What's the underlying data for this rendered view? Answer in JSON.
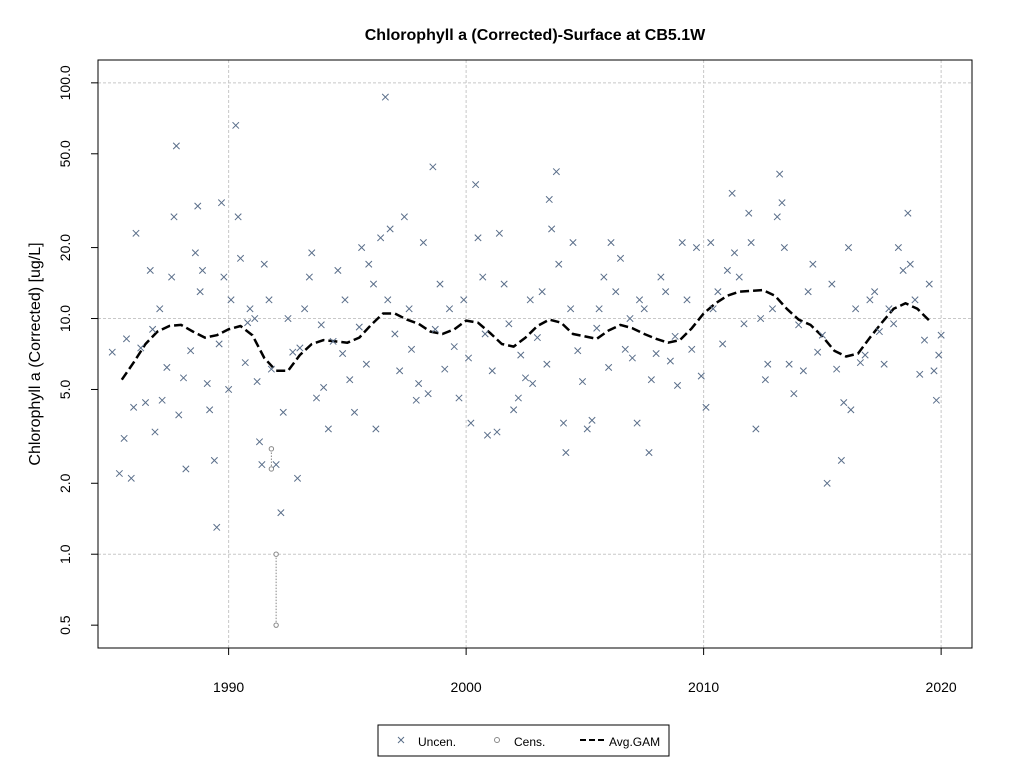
{
  "chart_data": {
    "type": "scatter",
    "title": "Chlorophyll a (Corrected)-Surface at CB5.1W",
    "xlabel": "",
    "ylabel": "Chlorophyll a (Corrected) [ug/L]",
    "x_scale": "linear",
    "y_scale": "log",
    "xlim": [
      1984.5,
      2021.3
    ],
    "ylim": [
      0.4,
      125
    ],
    "x_ticks": [
      1990,
      2000,
      2010,
      2020
    ],
    "x_tick_labels": [
      "1990",
      "2000",
      "2010",
      "2020"
    ],
    "y_ticks": [
      0.5,
      1,
      2,
      5,
      10,
      20,
      50,
      100
    ],
    "y_tick_labels": [
      "0.5",
      "1.0",
      "2.0",
      "5.0",
      "10.0",
      "20.0",
      "50.0",
      "100.0"
    ],
    "grid": true,
    "legend": {
      "position": "bottom",
      "entries": [
        {
          "label": "Uncen.",
          "symbol": "x",
          "color": "#5a6e8a"
        },
        {
          "label": "Cens.",
          "symbol": "circle",
          "color": "#888888"
        },
        {
          "label": "Avg.GAM",
          "symbol": "dashed-line",
          "color": "#000000"
        }
      ]
    },
    "series": [
      {
        "name": "Uncen.",
        "marker": "x",
        "color": "#5a6e8a",
        "points": [
          [
            1985.1,
            7.2
          ],
          [
            1985.4,
            2.2
          ],
          [
            1985.6,
            3.1
          ],
          [
            1985.7,
            8.2
          ],
          [
            1985.9,
            2.1
          ],
          [
            1986.0,
            4.2
          ],
          [
            1986.1,
            23
          ],
          [
            1986.3,
            7.5
          ],
          [
            1986.5,
            4.4
          ],
          [
            1986.7,
            16
          ],
          [
            1986.8,
            9
          ],
          [
            1986.9,
            3.3
          ],
          [
            1987.1,
            11
          ],
          [
            1987.2,
            4.5
          ],
          [
            1987.4,
            6.2
          ],
          [
            1987.6,
            15
          ],
          [
            1987.7,
            27
          ],
          [
            1987.8,
            54
          ],
          [
            1987.9,
            3.9
          ],
          [
            1988.1,
            5.6
          ],
          [
            1988.2,
            2.3
          ],
          [
            1988.4,
            7.3
          ],
          [
            1988.6,
            19
          ],
          [
            1988.7,
            30
          ],
          [
            1988.8,
            13
          ],
          [
            1988.9,
            16
          ],
          [
            1989.1,
            5.3
          ],
          [
            1989.2,
            4.1
          ],
          [
            1989.4,
            2.5
          ],
          [
            1989.5,
            1.3
          ],
          [
            1989.6,
            7.8
          ],
          [
            1989.7,
            31
          ],
          [
            1989.8,
            15
          ],
          [
            1990.0,
            5.0
          ],
          [
            1990.1,
            12
          ],
          [
            1990.3,
            66
          ],
          [
            1990.4,
            27
          ],
          [
            1990.5,
            18
          ],
          [
            1990.7,
            6.5
          ],
          [
            1990.8,
            9.6
          ],
          [
            1990.9,
            11
          ],
          [
            1991.1,
            10
          ],
          [
            1991.2,
            5.4
          ],
          [
            1991.3,
            3.0
          ],
          [
            1991.4,
            2.4
          ],
          [
            1991.5,
            17
          ],
          [
            1991.7,
            12
          ],
          [
            1991.8,
            6.1
          ],
          [
            1992.0,
            2.4
          ],
          [
            1992.2,
            1.5
          ],
          [
            1992.3,
            4.0
          ],
          [
            1992.5,
            10
          ],
          [
            1992.7,
            7.2
          ],
          [
            1992.9,
            2.1
          ],
          [
            1993.0,
            7.5
          ],
          [
            1993.2,
            11
          ],
          [
            1993.4,
            15
          ],
          [
            1993.5,
            19
          ],
          [
            1993.7,
            4.6
          ],
          [
            1993.9,
            9.4
          ],
          [
            1994.0,
            5.1
          ],
          [
            1994.2,
            3.4
          ],
          [
            1994.4,
            8.0
          ],
          [
            1994.6,
            16
          ],
          [
            1994.8,
            7.1
          ],
          [
            1994.9,
            12
          ],
          [
            1995.1,
            5.5
          ],
          [
            1995.3,
            4.0
          ],
          [
            1995.5,
            9.2
          ],
          [
            1995.6,
            20
          ],
          [
            1995.8,
            6.4
          ],
          [
            1995.9,
            17
          ],
          [
            1996.1,
            14
          ],
          [
            1996.2,
            3.4
          ],
          [
            1996.4,
            22
          ],
          [
            1996.6,
            87
          ],
          [
            1996.7,
            12
          ],
          [
            1996.8,
            24
          ],
          [
            1997.0,
            8.6
          ],
          [
            1997.2,
            6.0
          ],
          [
            1997.4,
            27
          ],
          [
            1997.6,
            11
          ],
          [
            1997.7,
            7.4
          ],
          [
            1997.9,
            4.5
          ],
          [
            1998.0,
            5.3
          ],
          [
            1998.2,
            21
          ],
          [
            1998.4,
            4.8
          ],
          [
            1998.6,
            44
          ],
          [
            1998.7,
            9.0
          ],
          [
            1998.9,
            14
          ],
          [
            1999.1,
            6.1
          ],
          [
            1999.3,
            11
          ],
          [
            1999.5,
            7.6
          ],
          [
            1999.7,
            4.6
          ],
          [
            1999.9,
            12
          ],
          [
            2000.1,
            6.8
          ],
          [
            2000.2,
            3.6
          ],
          [
            2000.4,
            37
          ],
          [
            2000.5,
            22
          ],
          [
            2000.7,
            15
          ],
          [
            2000.8,
            8.6
          ],
          [
            2000.9,
            3.2
          ],
          [
            2001.1,
            6.0
          ],
          [
            2001.3,
            3.3
          ],
          [
            2001.4,
            23
          ],
          [
            2001.6,
            14
          ],
          [
            2001.8,
            9.5
          ],
          [
            2002.0,
            4.1
          ],
          [
            2002.2,
            4.6
          ],
          [
            2002.3,
            7.0
          ],
          [
            2002.5,
            5.6
          ],
          [
            2002.7,
            12
          ],
          [
            2002.8,
            5.3
          ],
          [
            2003.0,
            8.3
          ],
          [
            2003.2,
            13
          ],
          [
            2003.4,
            6.4
          ],
          [
            2003.5,
            32
          ],
          [
            2003.6,
            24
          ],
          [
            2003.8,
            42
          ],
          [
            2003.9,
            17
          ],
          [
            2004.1,
            3.6
          ],
          [
            2004.2,
            2.7
          ],
          [
            2004.4,
            11
          ],
          [
            2004.5,
            21
          ],
          [
            2004.7,
            7.3
          ],
          [
            2004.9,
            5.4
          ],
          [
            2005.1,
            3.4
          ],
          [
            2005.3,
            3.7
          ],
          [
            2005.5,
            9.1
          ],
          [
            2005.6,
            11
          ],
          [
            2005.8,
            15
          ],
          [
            2006.0,
            6.2
          ],
          [
            2006.1,
            21
          ],
          [
            2006.3,
            13
          ],
          [
            2006.5,
            18
          ],
          [
            2006.7,
            7.4
          ],
          [
            2006.9,
            10
          ],
          [
            2007.0,
            6.8
          ],
          [
            2007.2,
            3.6
          ],
          [
            2007.3,
            12
          ],
          [
            2007.5,
            11
          ],
          [
            2007.7,
            2.7
          ],
          [
            2007.8,
            5.5
          ],
          [
            2008.0,
            7.1
          ],
          [
            2008.2,
            15
          ],
          [
            2008.4,
            13
          ],
          [
            2008.6,
            6.6
          ],
          [
            2008.8,
            8.4
          ],
          [
            2008.9,
            5.2
          ],
          [
            2009.1,
            21
          ],
          [
            2009.3,
            12
          ],
          [
            2009.5,
            7.4
          ],
          [
            2009.7,
            20
          ],
          [
            2009.9,
            5.7
          ],
          [
            2010.1,
            4.2
          ],
          [
            2010.3,
            21
          ],
          [
            2010.4,
            11
          ],
          [
            2010.6,
            13
          ],
          [
            2010.8,
            7.8
          ],
          [
            2011.0,
            16
          ],
          [
            2011.2,
            34
          ],
          [
            2011.3,
            19
          ],
          [
            2011.5,
            15
          ],
          [
            2011.7,
            9.5
          ],
          [
            2011.9,
            28
          ],
          [
            2012.0,
            21
          ],
          [
            2012.2,
            3.4
          ],
          [
            2012.4,
            10
          ],
          [
            2012.6,
            5.5
          ],
          [
            2012.7,
            6.4
          ],
          [
            2012.9,
            11
          ],
          [
            2013.1,
            27
          ],
          [
            2013.2,
            41
          ],
          [
            2013.3,
            31
          ],
          [
            2013.4,
            20
          ],
          [
            2013.6,
            6.4
          ],
          [
            2013.8,
            4.8
          ],
          [
            2014.0,
            9.4
          ],
          [
            2014.2,
            6.0
          ],
          [
            2014.4,
            13
          ],
          [
            2014.6,
            17
          ],
          [
            2014.8,
            7.2
          ],
          [
            2015.0,
            8.5
          ],
          [
            2015.2,
            2.0
          ],
          [
            2015.4,
            14
          ],
          [
            2015.6,
            6.1
          ],
          [
            2015.8,
            2.5
          ],
          [
            2015.9,
            4.4
          ],
          [
            2016.1,
            20
          ],
          [
            2016.2,
            4.1
          ],
          [
            2016.4,
            11
          ],
          [
            2016.6,
            6.5
          ],
          [
            2016.8,
            7.0
          ],
          [
            2017.0,
            12
          ],
          [
            2017.2,
            13
          ],
          [
            2017.4,
            8.8
          ],
          [
            2017.6,
            6.4
          ],
          [
            2017.8,
            11
          ],
          [
            2018.0,
            9.5
          ],
          [
            2018.2,
            20
          ],
          [
            2018.4,
            16
          ],
          [
            2018.6,
            28
          ],
          [
            2018.7,
            17
          ],
          [
            2018.9,
            12
          ],
          [
            2019.1,
            5.8
          ],
          [
            2019.3,
            8.1
          ],
          [
            2019.5,
            14
          ],
          [
            2019.7,
            6.0
          ],
          [
            2019.8,
            4.5
          ],
          [
            2019.9,
            7.0
          ],
          [
            2020.0,
            8.5
          ]
        ]
      },
      {
        "name": "Cens.",
        "marker": "circle",
        "color": "#888888",
        "intervals": [
          [
            1991.8,
            2.3,
            2.8
          ],
          [
            1992.0,
            0.5,
            1.0
          ]
        ]
      },
      {
        "name": "Avg.GAM",
        "marker": "dashed-line",
        "color": "#000000",
        "points": [
          [
            1985.5,
            5.5
          ],
          [
            1986.0,
            6.5
          ],
          [
            1986.5,
            7.8
          ],
          [
            1987.0,
            8.8
          ],
          [
            1987.5,
            9.3
          ],
          [
            1988.0,
            9.4
          ],
          [
            1988.5,
            8.8
          ],
          [
            1989.0,
            8.3
          ],
          [
            1989.5,
            8.5
          ],
          [
            1990.0,
            9.0
          ],
          [
            1990.5,
            9.3
          ],
          [
            1991.0,
            8.5
          ],
          [
            1991.5,
            6.8
          ],
          [
            1992.0,
            6.0
          ],
          [
            1992.5,
            6.0
          ],
          [
            1993.0,
            7.0
          ],
          [
            1993.5,
            7.8
          ],
          [
            1994.0,
            8.1
          ],
          [
            1994.5,
            8.0
          ],
          [
            1995.0,
            7.9
          ],
          [
            1995.5,
            8.3
          ],
          [
            1996.0,
            9.4
          ],
          [
            1996.5,
            10.5
          ],
          [
            1997.0,
            10.5
          ],
          [
            1997.5,
            9.9
          ],
          [
            1998.0,
            9.5
          ],
          [
            1998.5,
            8.8
          ],
          [
            1999.0,
            8.6
          ],
          [
            1999.5,
            9.0
          ],
          [
            2000.0,
            9.8
          ],
          [
            2000.5,
            9.6
          ],
          [
            2001.0,
            8.7
          ],
          [
            2001.5,
            7.8
          ],
          [
            2002.0,
            7.6
          ],
          [
            2002.5,
            8.3
          ],
          [
            2003.0,
            9.3
          ],
          [
            2003.5,
            9.9
          ],
          [
            2004.0,
            9.6
          ],
          [
            2004.5,
            8.6
          ],
          [
            2005.0,
            8.4
          ],
          [
            2005.5,
            8.2
          ],
          [
            2006.0,
            8.9
          ],
          [
            2006.5,
            9.4
          ],
          [
            2007.0,
            9.1
          ],
          [
            2007.5,
            8.6
          ],
          [
            2008.0,
            8.2
          ],
          [
            2008.5,
            7.9
          ],
          [
            2009.0,
            8.1
          ],
          [
            2009.5,
            9.1
          ],
          [
            2010.0,
            10.5
          ],
          [
            2010.5,
            11.6
          ],
          [
            2011.0,
            12.5
          ],
          [
            2011.5,
            13.0
          ],
          [
            2012.0,
            13.1
          ],
          [
            2012.5,
            13.2
          ],
          [
            2013.0,
            12.5
          ],
          [
            2013.5,
            11.0
          ],
          [
            2014.0,
            9.9
          ],
          [
            2014.5,
            9.4
          ],
          [
            2015.0,
            8.4
          ],
          [
            2015.5,
            7.3
          ],
          [
            2016.0,
            6.9
          ],
          [
            2016.5,
            7.1
          ],
          [
            2017.0,
            8.3
          ],
          [
            2017.5,
            9.6
          ],
          [
            2018.0,
            11.0
          ],
          [
            2018.5,
            11.6
          ],
          [
            2019.0,
            11.0
          ],
          [
            2019.5,
            9.8
          ]
        ]
      }
    ]
  }
}
